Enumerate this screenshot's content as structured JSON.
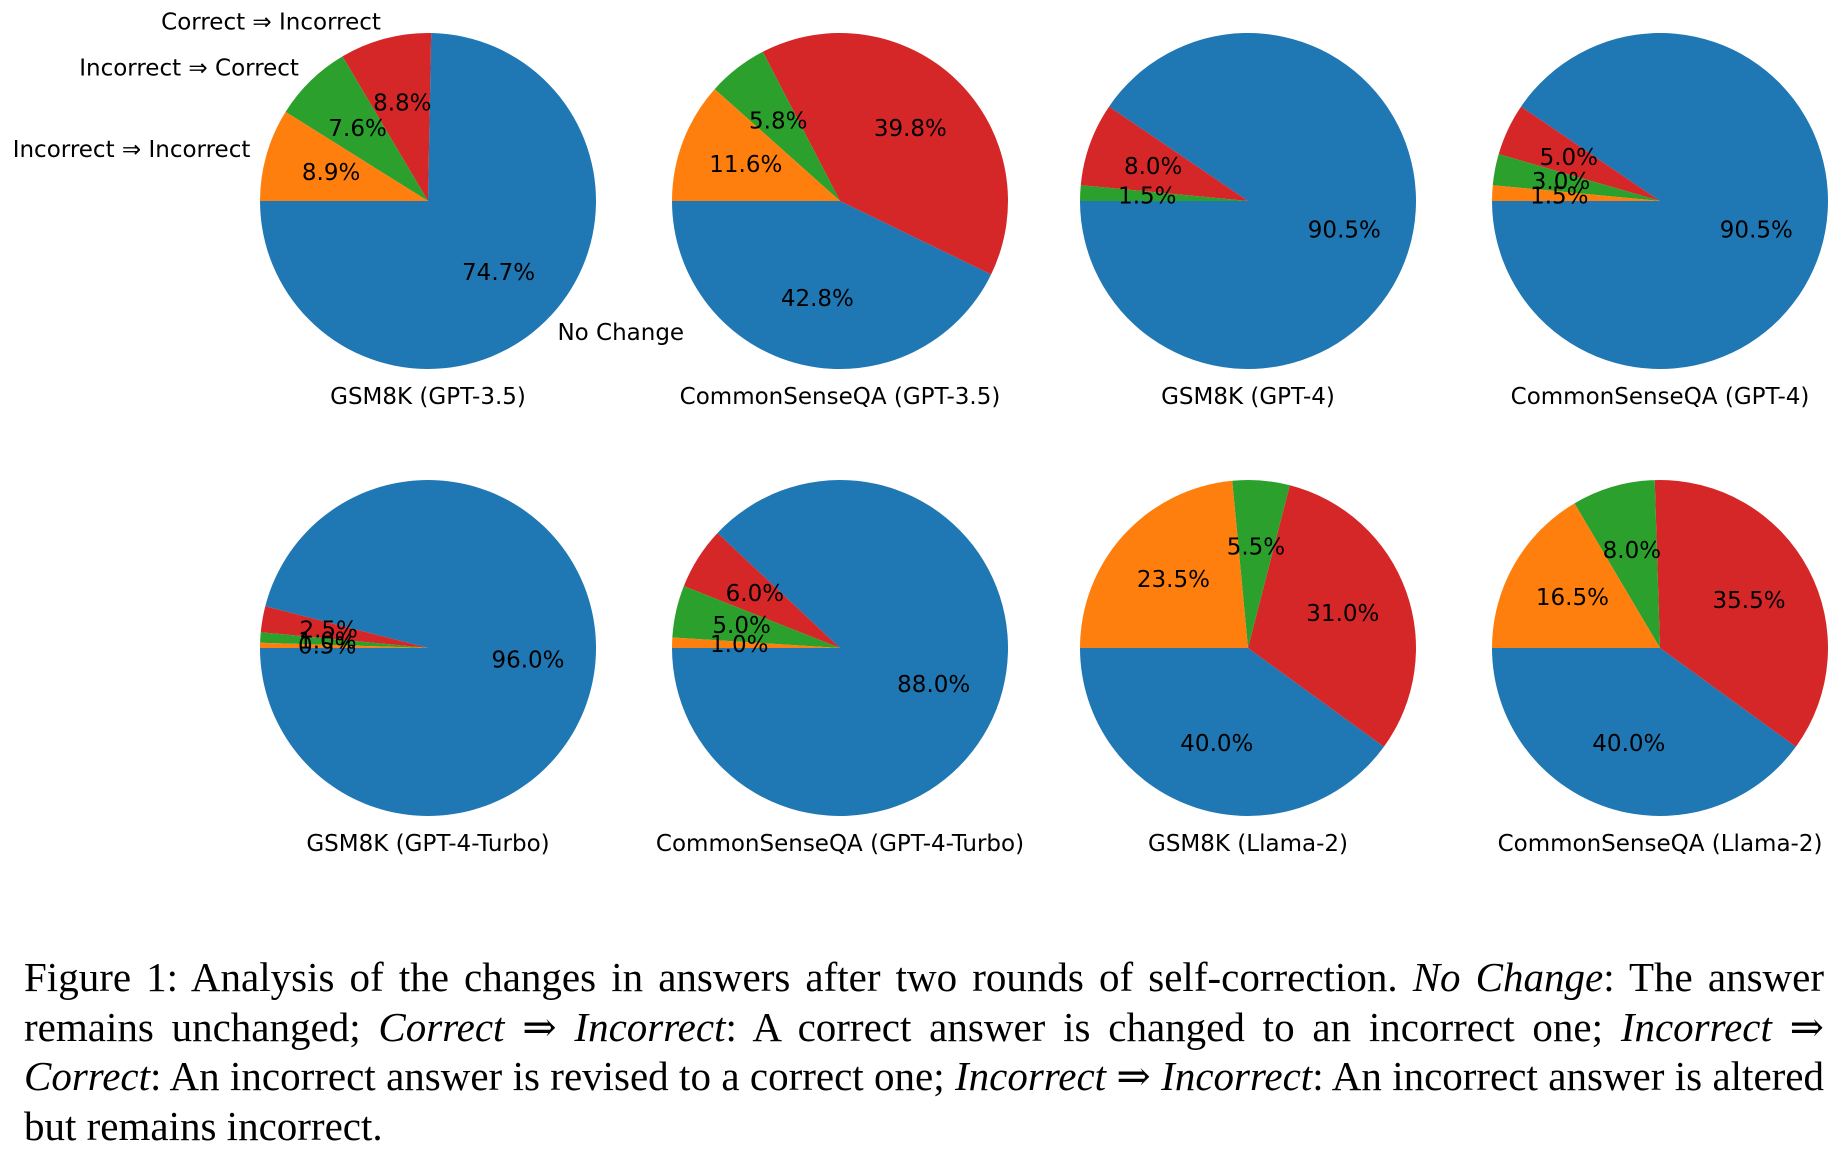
{
  "colors": {
    "no_change": "#1f77b4",
    "correct_to_incorrect": "#d62728",
    "incorrect_to_correct": "#2ca02c",
    "incorrect_to_incorrect": "#ff7f0e"
  },
  "chart_data": {
    "type": "pie",
    "category_labels": {
      "no_change": "No Change",
      "correct_to_incorrect": "Correct ⇒ Incorrect",
      "incorrect_to_correct": "Incorrect ⇒ Correct",
      "incorrect_to_incorrect": "Incorrect ⇒ Incorrect"
    },
    "slice_order": [
      "no_change",
      "correct_to_incorrect",
      "incorrect_to_correct",
      "incorrect_to_incorrect"
    ],
    "start_angle_deg": 180,
    "direction": "counterclockwise",
    "charts": [
      {
        "title": "GSM8K (GPT-3.5)",
        "values": [
          74.7,
          8.8,
          7.6,
          8.9
        ],
        "labels": [
          "74.7%",
          "8.8%",
          "7.6%",
          "8.9%"
        ]
      },
      {
        "title": "CommonSenseQA (GPT-3.5)",
        "values": [
          42.8,
          39.8,
          5.8,
          11.6
        ],
        "labels": [
          "42.8%",
          "39.8%",
          "5.8%",
          "11.6%"
        ]
      },
      {
        "title": "GSM8K (GPT-4)",
        "values": [
          90.5,
          8.0,
          1.5,
          0.0
        ],
        "labels": [
          "90.5%",
          "8.0%",
          "1.5%",
          ""
        ]
      },
      {
        "title": "CommonSenseQA (GPT-4)",
        "values": [
          90.5,
          5.0,
          3.0,
          1.5
        ],
        "labels": [
          "90.5%",
          "5.0%",
          "3.0%",
          "1.5%"
        ]
      },
      {
        "title": "GSM8K (GPT-4-Turbo)",
        "values": [
          96.0,
          2.5,
          1.0,
          0.5
        ],
        "labels": [
          "96.0%",
          "2.5%",
          "1.0%",
          "0.5%"
        ]
      },
      {
        "title": "CommonSenseQA (GPT-4-Turbo)",
        "values": [
          88.0,
          6.0,
          5.0,
          1.0
        ],
        "labels": [
          "88.0%",
          "6.0%",
          "5.0%",
          "1.0%"
        ]
      },
      {
        "title": "GSM8K (Llama-2)",
        "values": [
          40.0,
          31.0,
          5.5,
          23.5
        ],
        "labels": [
          "40.0%",
          "31.0%",
          "5.5%",
          "23.5%"
        ]
      },
      {
        "title": "CommonSenseQA (Llama-2)",
        "values": [
          40.0,
          35.5,
          8.0,
          16.5
        ],
        "labels": [
          "40.0%",
          "35.5%",
          "8.0%",
          "16.5%"
        ]
      }
    ]
  },
  "caption": {
    "lead": "Figure 1: Analysis of the changes in answers after two rounds of self-correction.",
    "t1": "No Change",
    "d1": ": The answer remains unchanged;",
    "t2": "Correct ⇒ Incorrect",
    "d2": ": A correct answer is changed to an incorrect one;",
    "t3": "Incorrect ⇒ Correct",
    "d3": ": An incorrect answer is revised to a correct one;",
    "t4": "Incorrect ⇒ Incorrect",
    "d4": ": An incorrect answer is altered but remains incorrect."
  }
}
